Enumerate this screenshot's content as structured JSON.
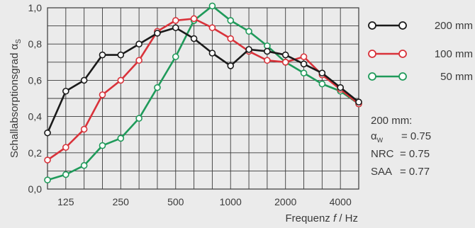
{
  "chart_data": {
    "type": "line",
    "x": [
      100,
      125,
      160,
      200,
      250,
      315,
      400,
      500,
      630,
      800,
      1000,
      1250,
      1600,
      2000,
      2500,
      3150,
      4000,
      5000
    ],
    "x_tick_labels": [
      "125",
      "250",
      "500",
      "1000",
      "2000",
      "4000"
    ],
    "x_tick_values": [
      125,
      250,
      500,
      1000,
      2000,
      4000
    ],
    "x_scale": "log",
    "xlabel": "Frequenz f / Hz",
    "xlabel_parts": {
      "prefix": "Frequenz ",
      "italic": "f",
      "suffix": " / Hz"
    },
    "ylabel": "Schallabsorptionsgrad αS",
    "ylabel_parts": {
      "main": "Schallabsorptionsgrad α",
      "sub": "S"
    },
    "ylim": [
      0,
      1
    ],
    "y_tick_labels": [
      "0,0",
      "0,2",
      "0,4",
      "0,6",
      "0,8",
      "1,0"
    ],
    "grid": true,
    "legend_position": "right",
    "series": [
      {
        "name": "200 mm",
        "color": "#1a1a1a",
        "values": [
          0.31,
          0.54,
          0.6,
          0.74,
          0.74,
          0.8,
          0.86,
          0.89,
          0.83,
          0.75,
          0.68,
          0.77,
          0.76,
          0.74,
          0.69,
          0.64,
          0.56,
          0.48
        ]
      },
      {
        "name": "100 mm",
        "color": "#d9323a",
        "values": [
          0.16,
          0.23,
          0.33,
          0.52,
          0.6,
          0.71,
          0.87,
          0.93,
          0.94,
          0.89,
          0.83,
          0.76,
          0.71,
          0.7,
          0.73,
          0.63,
          0.55,
          0.47
        ]
      },
      {
        "name": "50 mm",
        "color": "#1f9a5a",
        "values": [
          0.05,
          0.08,
          0.13,
          0.24,
          0.28,
          0.39,
          0.56,
          0.73,
          0.93,
          1.01,
          0.93,
          0.87,
          0.79,
          0.7,
          0.64,
          0.58,
          0.54,
          0.47
        ]
      }
    ],
    "annotation": {
      "title": "200 mm:",
      "lines": [
        {
          "label": "α",
          "sub": "W",
          "value": "= 0.75"
        },
        {
          "label": "NRC",
          "sub": "",
          "value": "= 0.75"
        },
        {
          "label": "SAA",
          "sub": "",
          "value": "= 0.77"
        }
      ]
    }
  }
}
